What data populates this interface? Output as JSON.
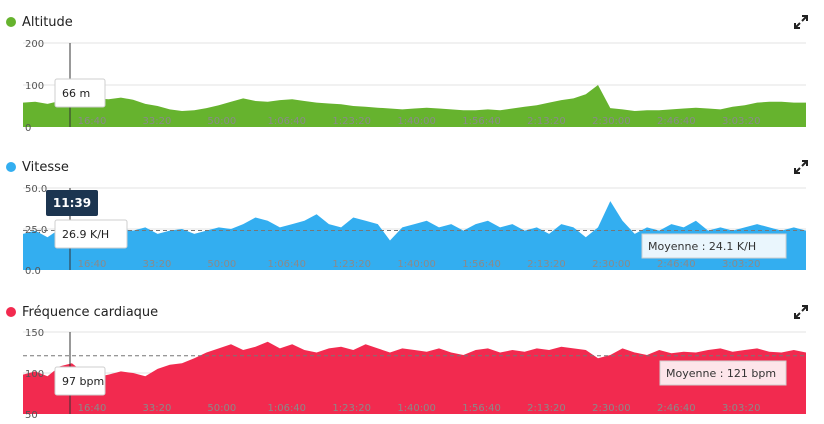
{
  "x_ticks": [
    "16:40",
    "33:20",
    "50:00",
    "1:06:40",
    "1:23:20",
    "1:40:00",
    "1:56:40",
    "2:13:20",
    "2:30:00",
    "2:46:40",
    "3:03:20"
  ],
  "cursor": {
    "time": "11:39"
  },
  "chart_data": [
    {
      "type": "area",
      "title": "Altitude",
      "color": "#66b32e",
      "ylim": [
        0,
        200
      ],
      "y_ticks": [
        "200",
        "100",
        "0"
      ],
      "tooltip": "66 m",
      "x": [
        0,
        3,
        6,
        9,
        12,
        15,
        18,
        21,
        24,
        27,
        30,
        33,
        36,
        39,
        42,
        45,
        48,
        51,
        54,
        57,
        60,
        63,
        66,
        69,
        72,
        75,
        78,
        81,
        84,
        87,
        90,
        93,
        96,
        99,
        102,
        105,
        108,
        111,
        114,
        117,
        120,
        123,
        126,
        129,
        132,
        135,
        138,
        141,
        144,
        147,
        150,
        153,
        156,
        159,
        162,
        165,
        168,
        171,
        174,
        177,
        180,
        183,
        186,
        189,
        192
      ],
      "values": [
        58,
        60,
        55,
        62,
        60,
        64,
        68,
        66,
        70,
        65,
        55,
        50,
        42,
        38,
        40,
        45,
        52,
        60,
        68,
        62,
        60,
        64,
        66,
        62,
        58,
        56,
        54,
        50,
        48,
        46,
        44,
        42,
        44,
        46,
        44,
        42,
        40,
        40,
        42,
        40,
        44,
        48,
        52,
        58,
        64,
        68,
        78,
        100,
        45,
        42,
        38,
        40,
        40,
        42,
        44,
        46,
        44,
        42,
        48,
        52,
        58,
        60,
        60,
        58,
        58
      ]
    },
    {
      "type": "area",
      "title": "Vitesse",
      "color": "#33aef0",
      "ylim": [
        0,
        50
      ],
      "y_ticks": [
        "50.0",
        "25.0",
        "0.0"
      ],
      "tooltip": "26.9 K/H",
      "average_label": "Moyenne : 24.1 K/H",
      "average": 24.1,
      "x": [
        0,
        3,
        6,
        9,
        12,
        15,
        18,
        21,
        24,
        27,
        30,
        33,
        36,
        39,
        42,
        45,
        48,
        51,
        54,
        57,
        60,
        63,
        66,
        69,
        72,
        75,
        78,
        81,
        84,
        87,
        90,
        93,
        96,
        99,
        102,
        105,
        108,
        111,
        114,
        117,
        120,
        123,
        126,
        129,
        132,
        135,
        138,
        141,
        144,
        147,
        150,
        153,
        156,
        159,
        162,
        165,
        168,
        171,
        174,
        177,
        180,
        183,
        186,
        189,
        192
      ],
      "values": [
        22,
        24,
        20,
        25,
        26,
        22,
        24,
        23,
        25,
        24,
        26,
        22,
        24,
        25,
        22,
        24,
        26,
        25,
        28,
        32,
        30,
        26,
        28,
        30,
        34,
        28,
        26,
        32,
        30,
        28,
        18,
        26,
        28,
        30,
        26,
        28,
        24,
        28,
        30,
        26,
        28,
        24,
        26,
        22,
        28,
        26,
        20,
        26,
        42,
        30,
        22,
        26,
        24,
        28,
        26,
        30,
        24,
        26,
        24,
        26,
        28,
        26,
        24,
        26,
        24
      ]
    },
    {
      "type": "area",
      "title": "Fréquence cardiaque",
      "color": "#f22a4f",
      "ylim": [
        50,
        150
      ],
      "y_ticks": [
        "150",
        "100",
        "50"
      ],
      "tooltip": "97 bpm",
      "average_label": "Moyenne : 121 bpm",
      "average": 121,
      "x": [
        0,
        3,
        6,
        9,
        12,
        15,
        18,
        21,
        24,
        27,
        30,
        33,
        36,
        39,
        42,
        45,
        48,
        51,
        54,
        57,
        60,
        63,
        66,
        69,
        72,
        75,
        78,
        81,
        84,
        87,
        90,
        93,
        96,
        99,
        102,
        105,
        108,
        111,
        114,
        117,
        120,
        123,
        126,
        129,
        132,
        135,
        138,
        141,
        144,
        147,
        150,
        153,
        156,
        159,
        162,
        165,
        168,
        171,
        174,
        177,
        180,
        183,
        186,
        189,
        192
      ],
      "values": [
        98,
        102,
        96,
        108,
        112,
        100,
        95,
        98,
        102,
        100,
        96,
        105,
        110,
        112,
        118,
        125,
        130,
        135,
        128,
        132,
        138,
        130,
        135,
        128,
        125,
        130,
        132,
        128,
        135,
        130,
        125,
        130,
        128,
        126,
        130,
        125,
        122,
        128,
        130,
        125,
        128,
        126,
        130,
        128,
        132,
        130,
        128,
        118,
        122,
        130,
        125,
        122,
        128,
        124,
        126,
        125,
        128,
        130,
        126,
        128,
        130,
        126,
        125,
        128,
        125
      ]
    }
  ]
}
